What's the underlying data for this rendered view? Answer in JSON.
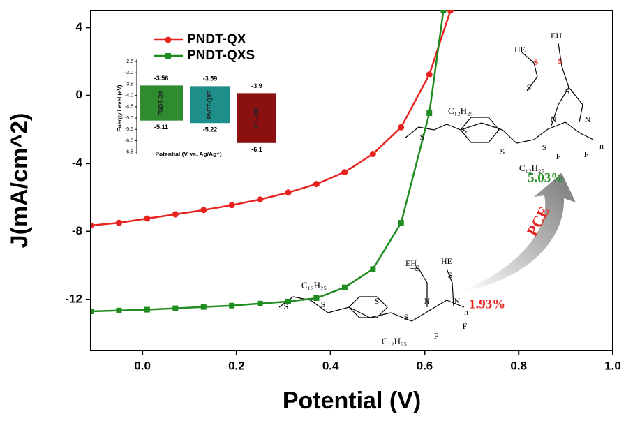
{
  "chart_data": [
    {
      "type": "line",
      "xlabel": "Potential (V)",
      "ylabel": "J(mA/cm^2)",
      "xlim": [
        -0.11,
        1.0
      ],
      "ylim": [
        -15,
        5
      ],
      "xticks": [
        {
          "value": 0,
          "label": "0.0"
        },
        0.2,
        0.4,
        0.6,
        0.8,
        {
          "value": 1,
          "label": "1.0"
        }
      ],
      "yticks": [
        4,
        0,
        -4,
        -8,
        -12
      ],
      "legend": "upper left",
      "series": [
        {
          "name": "PNDT-QX",
          "color": "#e8231f",
          "marker": "circle",
          "x": [
            -0.11,
            -0.05,
            0.01,
            0.07,
            0.13,
            0.19,
            0.25,
            0.31,
            0.37,
            0.43,
            0.49,
            0.55,
            0.61,
            0.655
          ],
          "values": [
            -7.65,
            -7.49,
            -7.24,
            -6.99,
            -6.74,
            -6.45,
            -6.12,
            -5.71,
            -5.21,
            -4.51,
            -3.44,
            -1.87,
            1.23,
            5
          ]
        },
        {
          "name": "PNDT-QXS",
          "color": "#1e8c1e",
          "marker": "square",
          "x": [
            -0.11,
            -0.05,
            0.01,
            0.07,
            0.13,
            0.19,
            0.25,
            0.31,
            0.37,
            0.43,
            0.49,
            0.55,
            0.61,
            0.64
          ],
          "values": [
            -12.7,
            -12.65,
            -12.6,
            -12.52,
            -12.44,
            -12.36,
            -12.24,
            -12.12,
            -11.92,
            -11.29,
            -10.21,
            -7.49,
            -1.04,
            5
          ]
        }
      ],
      "annotations": [
        "1.93%",
        "5.03%",
        "PCE"
      ]
    },
    {
      "type": "floating-bar",
      "xlabel": "Potential (V vs. Ag/Ag⁺)",
      "ylabel": "Energy Level (eV)",
      "ylim": [
        -6.6,
        -2.4
      ],
      "yticks": [
        -2.5,
        {
          "value": -3,
          "label": "-3.0"
        },
        -3.5,
        {
          "value": -4,
          "label": "-4.0"
        },
        -4.5,
        {
          "value": -5,
          "label": "-5.0"
        },
        -5.5,
        {
          "value": -6,
          "label": "-6.0"
        },
        -6.5
      ],
      "categories": [
        "PNDT-QX",
        "PNDT-QXS",
        "PC₇₁BM"
      ],
      "colors": [
        "#2e8b2e",
        "#1e8e8a",
        "#8b1010"
      ],
      "lumo": [
        -3.56,
        -3.59,
        -3.9
      ],
      "homo": [
        -5.11,
        -5.22,
        -6.1
      ]
    }
  ],
  "structures": [
    {
      "labels": [
        "HE",
        "EH",
        "S",
        "S",
        "C₁₂H₂₅",
        "C₁₂H₂₅",
        "N",
        "N",
        "F",
        "F",
        "n",
        "S",
        "S",
        "S",
        "S",
        "S",
        "S"
      ]
    },
    {
      "labels": [
        "EH",
        "HE",
        "C₁₂H₂₅",
        "C₁₂H₂₅",
        "N",
        "N",
        "F",
        "F",
        "n",
        "S",
        "S",
        "S",
        "S",
        "S",
        "S"
      ]
    }
  ]
}
